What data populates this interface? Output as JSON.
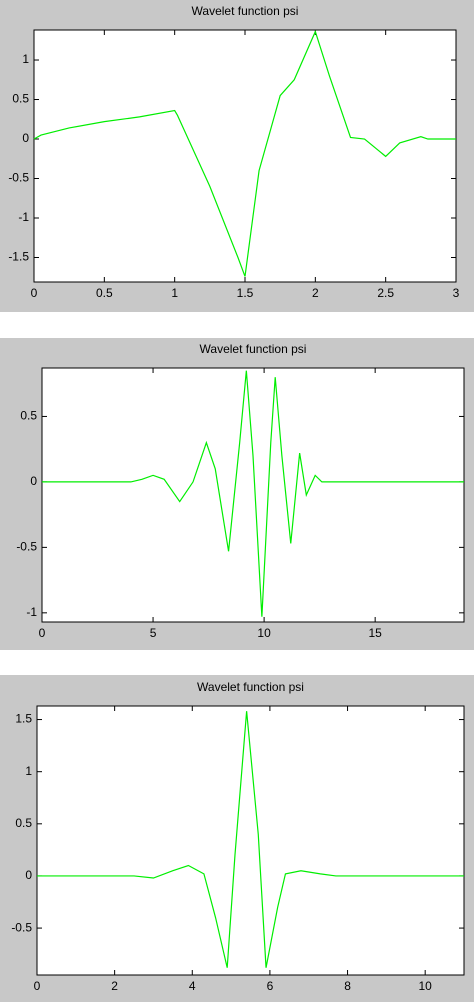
{
  "chart_data": [
    {
      "type": "line",
      "title": "Wavelet function psi",
      "color": "#00ee00",
      "x": [
        0,
        0.05,
        0.25,
        0.5,
        0.75,
        1.0,
        1.02,
        1.25,
        1.45,
        1.5,
        1.6,
        1.75,
        1.85,
        2.0,
        2.1,
        2.25,
        2.35,
        2.5,
        2.6,
        2.75,
        2.8,
        3.0
      ],
      "values": [
        0,
        0.05,
        0.14,
        0.22,
        0.28,
        0.36,
        0.3,
        -0.6,
        -1.5,
        -1.74,
        -0.4,
        0.55,
        0.75,
        1.36,
        0.8,
        0.02,
        0,
        -0.22,
        -0.05,
        0.03,
        0,
        0
      ],
      "xlim": [
        0,
        3
      ],
      "ylim": [
        -1.81,
        1.38
      ],
      "xticks": [
        0,
        0.5,
        1,
        1.5,
        2,
        2.5,
        3
      ],
      "yticks": [
        -1.5,
        -1,
        -0.5,
        0,
        0.5,
        1
      ]
    },
    {
      "type": "line",
      "title": "Wavelet function psi",
      "color": "#00ee00",
      "x": [
        0,
        4,
        4.5,
        5,
        5.5,
        6.2,
        6.8,
        7.4,
        7.8,
        8.4,
        8.9,
        9.2,
        9.5,
        9.9,
        10.3,
        10.5,
        10.8,
        11.2,
        11.6,
        11.9,
        12.3,
        12.6,
        19
      ],
      "values": [
        0,
        0,
        0.02,
        0.05,
        0.02,
        -0.15,
        0,
        0.3,
        0.1,
        -0.53,
        0.3,
        0.85,
        0.2,
        -1.03,
        0.3,
        0.8,
        0.2,
        -0.47,
        0.22,
        -0.1,
        0.05,
        0,
        0
      ],
      "xlim": [
        0,
        19
      ],
      "ylim": [
        -1.07,
        0.87
      ],
      "xticks": [
        0,
        5,
        10,
        15
      ],
      "yticks": [
        -1,
        -0.5,
        0,
        0.5
      ]
    },
    {
      "type": "line",
      "title": "Wavelet function psi",
      "color": "#00ee00",
      "x": [
        0,
        2.5,
        3,
        3.5,
        3.9,
        4.3,
        4.6,
        4.9,
        5.1,
        5.4,
        5.7,
        5.9,
        6.2,
        6.4,
        6.8,
        7.3,
        7.7,
        11
      ],
      "values": [
        0,
        0,
        -0.02,
        0.05,
        0.1,
        0.02,
        -0.4,
        -0.88,
        0.2,
        1.58,
        0.4,
        -0.88,
        -0.3,
        0.02,
        0.05,
        0.02,
        0,
        0
      ],
      "xlim": [
        0,
        11
      ],
      "ylim": [
        -0.95,
        1.63
      ],
      "xticks": [
        0,
        2,
        4,
        6,
        8,
        10
      ],
      "yticks": [
        -0.5,
        0,
        0.5,
        1,
        1.5
      ]
    }
  ]
}
